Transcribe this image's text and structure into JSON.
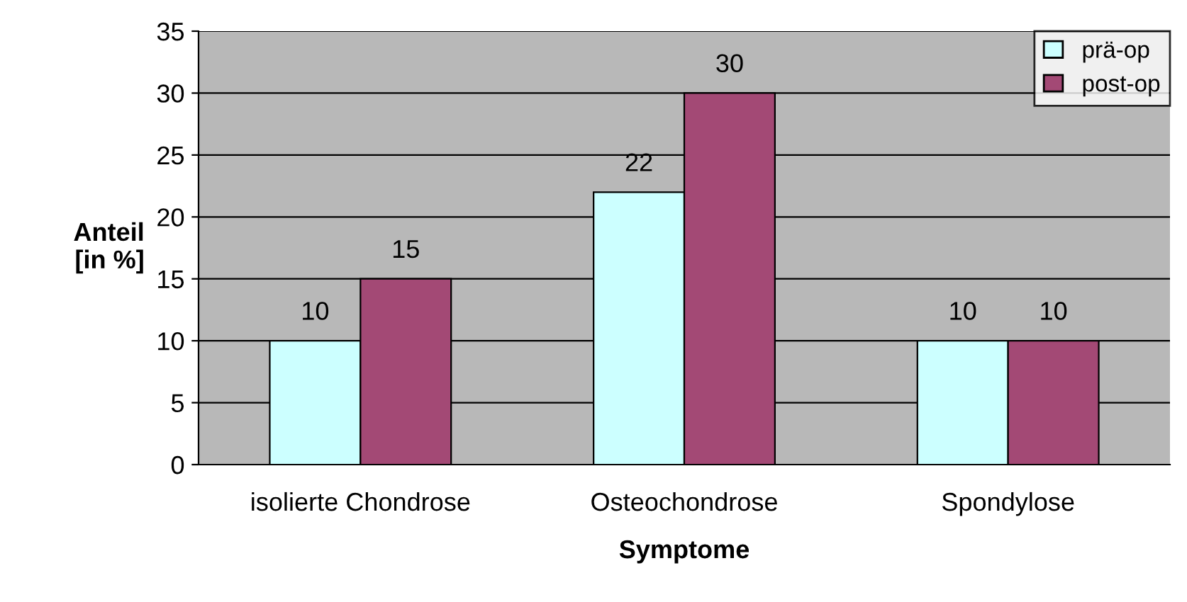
{
  "chart_data": {
    "type": "bar",
    "xlabel": "Symptome",
    "ylabel": "Anteil\n[in %]",
    "categories": [
      "isolierte Chondrose",
      "Osteochondrose",
      "Spondylose"
    ],
    "series": [
      {
        "name": "prä-op",
        "color": "#ccffff",
        "values": [
          10,
          22,
          10
        ]
      },
      {
        "name": "post-op",
        "color": "#a34975",
        "values": [
          15,
          30,
          10
        ]
      }
    ],
    "ylim": [
      0,
      35
    ],
    "yticks": [
      0,
      5,
      10,
      15,
      20,
      25,
      30,
      35
    ],
    "grid": "y",
    "legend": "top right",
    "data_labels": true
  }
}
